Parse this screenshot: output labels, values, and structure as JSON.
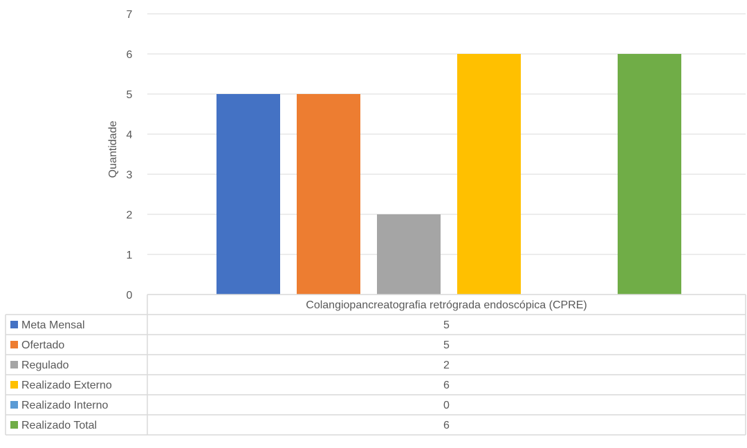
{
  "chart_data": {
    "type": "bar",
    "categories": [
      "Colangiopancreatografia retrógrada endoscópica (CPRE)"
    ],
    "series": [
      {
        "name": "Meta Mensal",
        "values": [
          5
        ],
        "color": "#4472C4"
      },
      {
        "name": "Ofertado",
        "values": [
          5
        ],
        "color": "#ED7D31"
      },
      {
        "name": "Regulado",
        "values": [
          2
        ],
        "color": "#A5A5A5"
      },
      {
        "name": "Realizado Externo",
        "values": [
          6
        ],
        "color": "#FFC000"
      },
      {
        "name": "Realizado Interno",
        "values": [
          0
        ],
        "color": "#5B9BD5"
      },
      {
        "name": "Realizado Total",
        "values": [
          6
        ],
        "color": "#70AD47"
      }
    ],
    "ylabel": "Quantidade",
    "xlabel": "",
    "ylim": [
      0,
      7
    ],
    "yticks": [
      "0",
      "1",
      "2",
      "3",
      "4",
      "5",
      "6",
      "7"
    ],
    "grid": true,
    "legend": "data-table"
  }
}
